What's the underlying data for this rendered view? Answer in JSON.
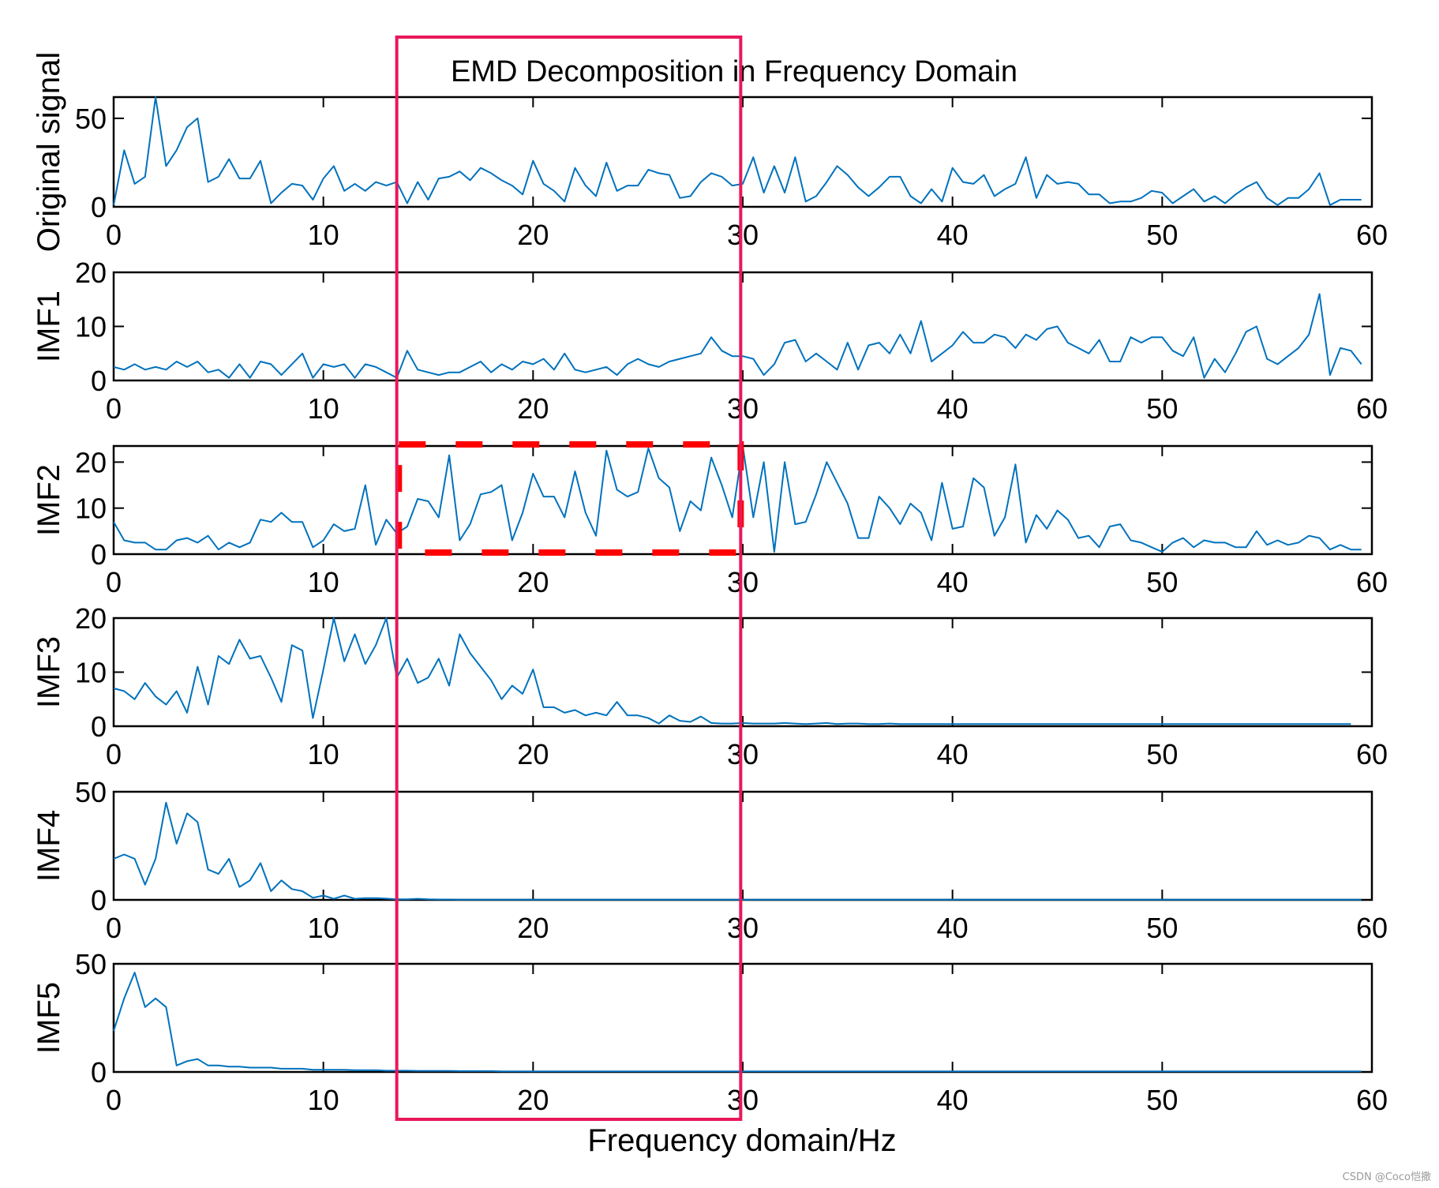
{
  "chart_data": {
    "type": "line",
    "title": "EMD Decomposition in Frequency Domain",
    "xlabel": "Frequency domain/Hz",
    "xlim": [
      0,
      60
    ],
    "x_ticks": [
      0,
      10,
      20,
      30,
      40,
      50,
      60
    ],
    "line_color": "#0072BD",
    "highlight_color": "#E8185A",
    "dashed_box_color": "#FF0000",
    "highlight_band": {
      "x_range": [
        13.5,
        29.9
      ],
      "label": ""
    },
    "dashed_box": {
      "panel": "IMF2",
      "x_range": [
        13.6,
        29.9
      ],
      "y_range": [
        0,
        23.5
      ]
    },
    "x_step": 0.5,
    "series": [
      {
        "name": "Original signal",
        "ylim": [
          0,
          62
        ],
        "y_ticks": [
          0,
          50
        ],
        "values": [
          1,
          32,
          13,
          17,
          62,
          23,
          32,
          45,
          50,
          14,
          17,
          27,
          16,
          16,
          26,
          2,
          8,
          13,
          12,
          4,
          16,
          23,
          9,
          13,
          9,
          14,
          12,
          14,
          2,
          14,
          4,
          16,
          17,
          20,
          15,
          22,
          19,
          15,
          12,
          7,
          26,
          13,
          9,
          3,
          22,
          12,
          6,
          25,
          9,
          12,
          12,
          21,
          19,
          18,
          5,
          6,
          14,
          19,
          17,
          12,
          13,
          28,
          8,
          23,
          8,
          28,
          3,
          6,
          14,
          23,
          18,
          11,
          6,
          11,
          17,
          17,
          6,
          2,
          10,
          3,
          22,
          14,
          13,
          18,
          6,
          10,
          13,
          28,
          5,
          18,
          13,
          14,
          13,
          7,
          7,
          2,
          3,
          3,
          5,
          9,
          8,
          2,
          6,
          10,
          3,
          6,
          2,
          7,
          11,
          14,
          5,
          1,
          5,
          5,
          10,
          19,
          1,
          4,
          4,
          4
        ]
      },
      {
        "name": "IMF1",
        "ylim": [
          0,
          20
        ],
        "y_ticks": [
          0,
          10,
          20
        ],
        "values": [
          2.5,
          2,
          3,
          2,
          2.5,
          2,
          3.5,
          2.5,
          3.5,
          1.5,
          2,
          0.5,
          3,
          0.5,
          3.5,
          3,
          1,
          3,
          5,
          0.5,
          3,
          2.5,
          3,
          0.5,
          3,
          2.5,
          1.5,
          0.5,
          5.5,
          2,
          1.5,
          1,
          1.5,
          1.5,
          2.5,
          3.5,
          1.5,
          3,
          2,
          3.5,
          3,
          4,
          2,
          5,
          2,
          1.5,
          2,
          2.5,
          1,
          3,
          4,
          3,
          2.5,
          3.5,
          4,
          4.5,
          5,
          8,
          5.5,
          4.5,
          4.5,
          4,
          1,
          3,
          7,
          7.5,
          3.5,
          5,
          3.5,
          2,
          7,
          2,
          6.5,
          7,
          5,
          8.5,
          5,
          11,
          3.5,
          5,
          6.5,
          9,
          7,
          7,
          8.5,
          8,
          6,
          8.5,
          7.5,
          9.5,
          10,
          7,
          6,
          5,
          7.5,
          3.5,
          3.5,
          8,
          7,
          8,
          8,
          5.5,
          4.5,
          8,
          0.5,
          4,
          1.5,
          5,
          9,
          10,
          4,
          3,
          4.5,
          6,
          8.5,
          16,
          1,
          6,
          5.5,
          3
        ]
      },
      {
        "name": "IMF2",
        "ylim": [
          0,
          23.5
        ],
        "y_ticks": [
          0,
          10,
          20
        ],
        "values": [
          7,
          3,
          2.5,
          2.5,
          1,
          1,
          3,
          3.5,
          2.5,
          4,
          1,
          2.5,
          1.5,
          2.5,
          7.5,
          7,
          9,
          7,
          7,
          1.5,
          3,
          6.5,
          5,
          5.5,
          15,
          2,
          7.5,
          4.5,
          6,
          12,
          11.5,
          8,
          21.5,
          3,
          6.5,
          13,
          13.5,
          15,
          3,
          9,
          17.5,
          12.5,
          12.5,
          8,
          18,
          9,
          4,
          22.5,
          14,
          12.5,
          13.5,
          23,
          16.5,
          14.5,
          5,
          11.5,
          9.5,
          21,
          15,
          8,
          23.5,
          8,
          20,
          0.5,
          20,
          6.5,
          7,
          13,
          20,
          15.5,
          11,
          3.5,
          3.5,
          12.5,
          10,
          6.5,
          11,
          9,
          3,
          15.5,
          5.5,
          6,
          16.5,
          14.5,
          4,
          8,
          19.5,
          2.5,
          8.5,
          5.5,
          9.5,
          7.5,
          3.5,
          4,
          1.5,
          6,
          6.5,
          3,
          2.5,
          1.5,
          0.5,
          2.5,
          3.5,
          1.5,
          3,
          2.5,
          2.5,
          1.5,
          1.5,
          5,
          2,
          3,
          2,
          2.5,
          4,
          3.5,
          1,
          2,
          1,
          1
        ]
      },
      {
        "name": "IMF3",
        "ylim": [
          0,
          20
        ],
        "y_ticks": [
          0,
          10,
          20
        ],
        "values": [
          7,
          6.5,
          5,
          8,
          5.5,
          4,
          6.5,
          2.5,
          11,
          4,
          13,
          11.5,
          16,
          12.5,
          13,
          9,
          4.5,
          15,
          14,
          1.5,
          10.5,
          20,
          12,
          17,
          11.5,
          15,
          20,
          9,
          12.5,
          8,
          9,
          12.5,
          7.5,
          17,
          13.5,
          11,
          8.5,
          5,
          7.5,
          6,
          10.5,
          3.5,
          3.5,
          2.5,
          3,
          2,
          2.5,
          2,
          4.5,
          2,
          2,
          1.5,
          0.5,
          2,
          1,
          0.8,
          1.8,
          0.6,
          0.5,
          0.5,
          0.6,
          0.5,
          0.5,
          0.5,
          0.6,
          0.5,
          0.4,
          0.5,
          0.6,
          0.4,
          0.5,
          0.5,
          0.4,
          0.4,
          0.5,
          0.4,
          0.4,
          0.4,
          0.4,
          0.4,
          0.4,
          0.4,
          0.4,
          0.4,
          0.4,
          0.4,
          0.4,
          0.4,
          0.4,
          0.4,
          0.4,
          0.4,
          0.4,
          0.4,
          0.4,
          0.4,
          0.4,
          0.4,
          0.4,
          0.4,
          0.4,
          0.4,
          0.4,
          0.4,
          0.4,
          0.4,
          0.4,
          0.4,
          0.4,
          0.4,
          0.4,
          0.4,
          0.4,
          0.4,
          0.4,
          0.4,
          0.4,
          0.4,
          0.4
        ]
      },
      {
        "name": "IMF4",
        "ylim": [
          0,
          50
        ],
        "y_ticks": [
          0,
          50
        ],
        "values": [
          19,
          21,
          19,
          7,
          19,
          45,
          26,
          40,
          36,
          14,
          12,
          19,
          6,
          9,
          17,
          4,
          9,
          5,
          4,
          1,
          2,
          0.5,
          2,
          0.5,
          0.8,
          0.8,
          0.6,
          0.3,
          0.3,
          0.5,
          0.3,
          0.2,
          0.2,
          0.1,
          0.1,
          0.1,
          0.1,
          0.1,
          0.1,
          0.1,
          0.1,
          0.1,
          0.1,
          0.1,
          0.1,
          0.1,
          0.1,
          0.1,
          0.1,
          0.1,
          0.1,
          0.1,
          0.1,
          0.1,
          0.1,
          0.1,
          0.1,
          0.1,
          0.1,
          0.1,
          0.1,
          0.1,
          0.1,
          0.1,
          0.1,
          0.1,
          0.1,
          0.1,
          0.1,
          0.1,
          0.1,
          0.1,
          0.1,
          0.1,
          0.1,
          0.1,
          0.1,
          0.1,
          0.1,
          0.1,
          0.1,
          0.1,
          0.1,
          0.1,
          0.1,
          0.1,
          0.1,
          0.1,
          0.1,
          0.1,
          0.1,
          0.1,
          0.1,
          0.1,
          0.1,
          0.1,
          0.1,
          0.1,
          0.1,
          0.1,
          0.1,
          0.1,
          0.1,
          0.1,
          0.1,
          0.1,
          0.1,
          0.1,
          0.1,
          0.1,
          0.1,
          0.1,
          0.1,
          0.1,
          0.1,
          0.1,
          0.1,
          0.1,
          0.1,
          0.1
        ]
      },
      {
        "name": "IMF5",
        "ylim": [
          0,
          50
        ],
        "y_ticks": [
          0,
          50
        ],
        "values": [
          19,
          34,
          46,
          30,
          34,
          30,
          3,
          5,
          6,
          3,
          3,
          2.5,
          2.5,
          2,
          2,
          2,
          1.5,
          1.5,
          1.5,
          1,
          1,
          1,
          1,
          0.8,
          0.8,
          0.8,
          0.6,
          0.6,
          0.6,
          0.5,
          0.5,
          0.5,
          0.5,
          0.4,
          0.4,
          0.4,
          0.4,
          0.3,
          0.3,
          0.3,
          0.3,
          0.3,
          0.3,
          0.3,
          0.3,
          0.3,
          0.3,
          0.3,
          0.3,
          0.3,
          0.3,
          0.3,
          0.3,
          0.3,
          0.3,
          0.3,
          0.3,
          0.3,
          0.3,
          0.3,
          0.3,
          0.3,
          0.3,
          0.3,
          0.3,
          0.3,
          0.3,
          0.3,
          0.3,
          0.3,
          0.3,
          0.3,
          0.3,
          0.3,
          0.3,
          0.3,
          0.3,
          0.3,
          0.3,
          0.3,
          0.3,
          0.3,
          0.3,
          0.3,
          0.3,
          0.3,
          0.3,
          0.3,
          0.3,
          0.3,
          0.3,
          0.3,
          0.3,
          0.3,
          0.3,
          0.3,
          0.3,
          0.3,
          0.3,
          0.3,
          0.3,
          0.3,
          0.3,
          0.3,
          0.3,
          0.3,
          0.3,
          0.3,
          0.3,
          0.3,
          0.3,
          0.3,
          0.3,
          0.3,
          0.3,
          0.3,
          0.3,
          0.3,
          0.3,
          0.3
        ]
      }
    ]
  },
  "watermark": "CSDN @Coco恺撒"
}
